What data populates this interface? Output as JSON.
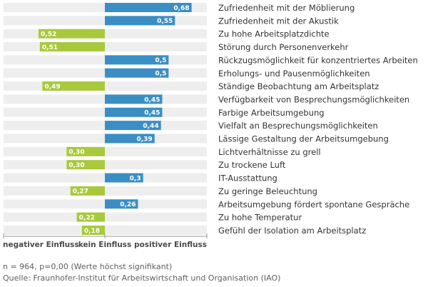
{
  "chart_data": {
    "type": "bar",
    "orientation": "horizontal-diverging",
    "categories": [
      "Zufriedenheit mit der Möblierung",
      "Zufriedenheit mit der Akustik",
      "Zu hohe Arbeitsplatzdichte",
      "Störung durch Personenverkehr",
      "Rückzugsmöglichkeit für konzentriertes Arbeiten",
      "Erholungs- und Pausenmöglichkeiten",
      "Ständige Beobachtung am Arbeitsplatz",
      "Verfügbarkeit von Besprechungsmöglichkeiten",
      "Farbige Arbeitsumgebung",
      "Vielfalt an Besprechungsmöglichkeiten",
      "Lässige Gestaltung der Arbeitsumgebung",
      "Lichtverhältnisse zu grell",
      "Zu trockene Luft",
      "IT-Ausstattung",
      "Zu geringe Beleuchtung",
      "Arbeitsumgebung fördert spontane Gespräche",
      "Zu hohe Temperatur",
      "Gefühl der Isolation am Arbeitsplatz"
    ],
    "values": [
      0.68,
      0.55,
      -0.52,
      -0.51,
      0.5,
      0.5,
      -0.49,
      0.45,
      0.45,
      0.44,
      0.39,
      -0.3,
      -0.3,
      0.3,
      -0.27,
      0.26,
      -0.22,
      -0.18
    ],
    "value_labels": [
      "0,68",
      "0,55",
      "0,52",
      "0,51",
      "0,5",
      "0,5",
      "0,49",
      "0,45",
      "0,45",
      "0,44",
      "0,39",
      "0,30",
      "0,30",
      "0,3",
      "0,27",
      "0,26",
      "0,22",
      "0,18"
    ],
    "xlim": [
      -0.8,
      0.8
    ],
    "axis_labels": {
      "negative": "negativer Einfluss",
      "center": "kein Einfluss",
      "positive": "positiver Einfluss"
    },
    "colors": {
      "positive": "#3a8ec4",
      "negative": "#a8c93c",
      "row_bg": "#eeeeee"
    },
    "grid": false,
    "legend": "none"
  },
  "footer": {
    "note": "n = 964, p=0,00 (Werte höchst signifikant)",
    "source": "Quelle: Fraunhofer-Institut für Arbeitswirtschaft und Organisation (IAO)"
  }
}
